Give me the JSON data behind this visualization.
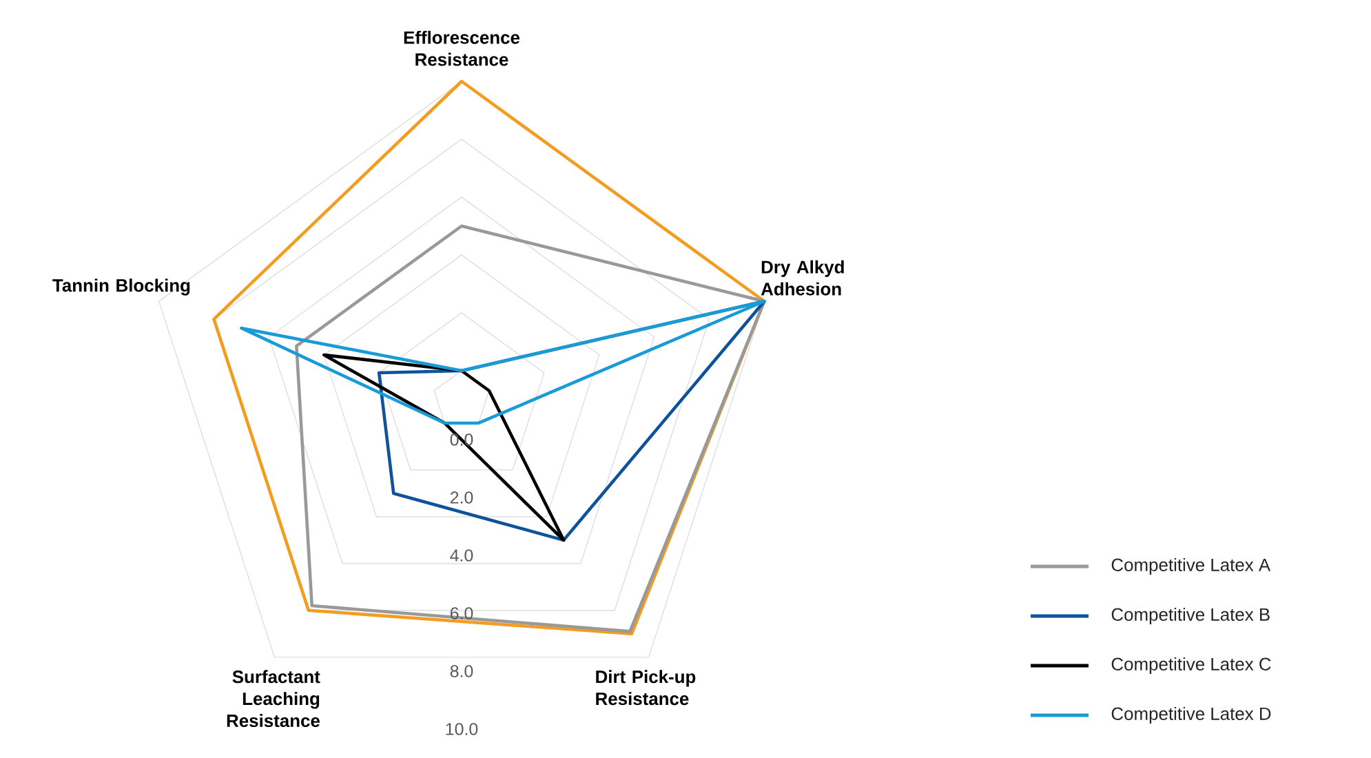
{
  "chart_data": {
    "type": "radar",
    "categories": [
      "Efflorescence Resistance",
      "Dry Alkyd Adhesion",
      "Dirt Pick-up Resistance",
      "Surfactant Leaching Resistance",
      "Tannin Blocking"
    ],
    "ylim": [
      -1,
      10
    ],
    "yticks": [
      {
        "value": 0,
        "label": "0.0"
      },
      {
        "value": 2,
        "label": "2.0"
      },
      {
        "value": 4,
        "label": "4.0"
      },
      {
        "value": 6,
        "label": "6.0"
      },
      {
        "value": 8,
        "label": "8.0"
      },
      {
        "value": 10,
        "label": "10.0"
      }
    ],
    "grid": true,
    "legend": "right",
    "series": [
      {
        "color": "#f39c1f",
        "values": [
          10,
          10,
          9,
          8,
          8
        ]
      },
      {
        "name": "Competitive Latex A",
        "color": "#999999",
        "values": [
          5,
          10,
          8.9,
          7.8,
          5
        ]
      },
      {
        "name": "Competitive Latex B",
        "color": "#0f529c",
        "values": [
          0,
          10,
          5,
          3,
          2
        ]
      },
      {
        "name": "Competitive Latex C",
        "color": "#000000",
        "values": [
          0,
          0,
          5,
          0,
          4
        ]
      },
      {
        "name": "Competitive Latex D",
        "color": "#1a9ad6",
        "values": [
          0,
          10,
          0,
          0,
          7
        ]
      }
    ]
  }
}
